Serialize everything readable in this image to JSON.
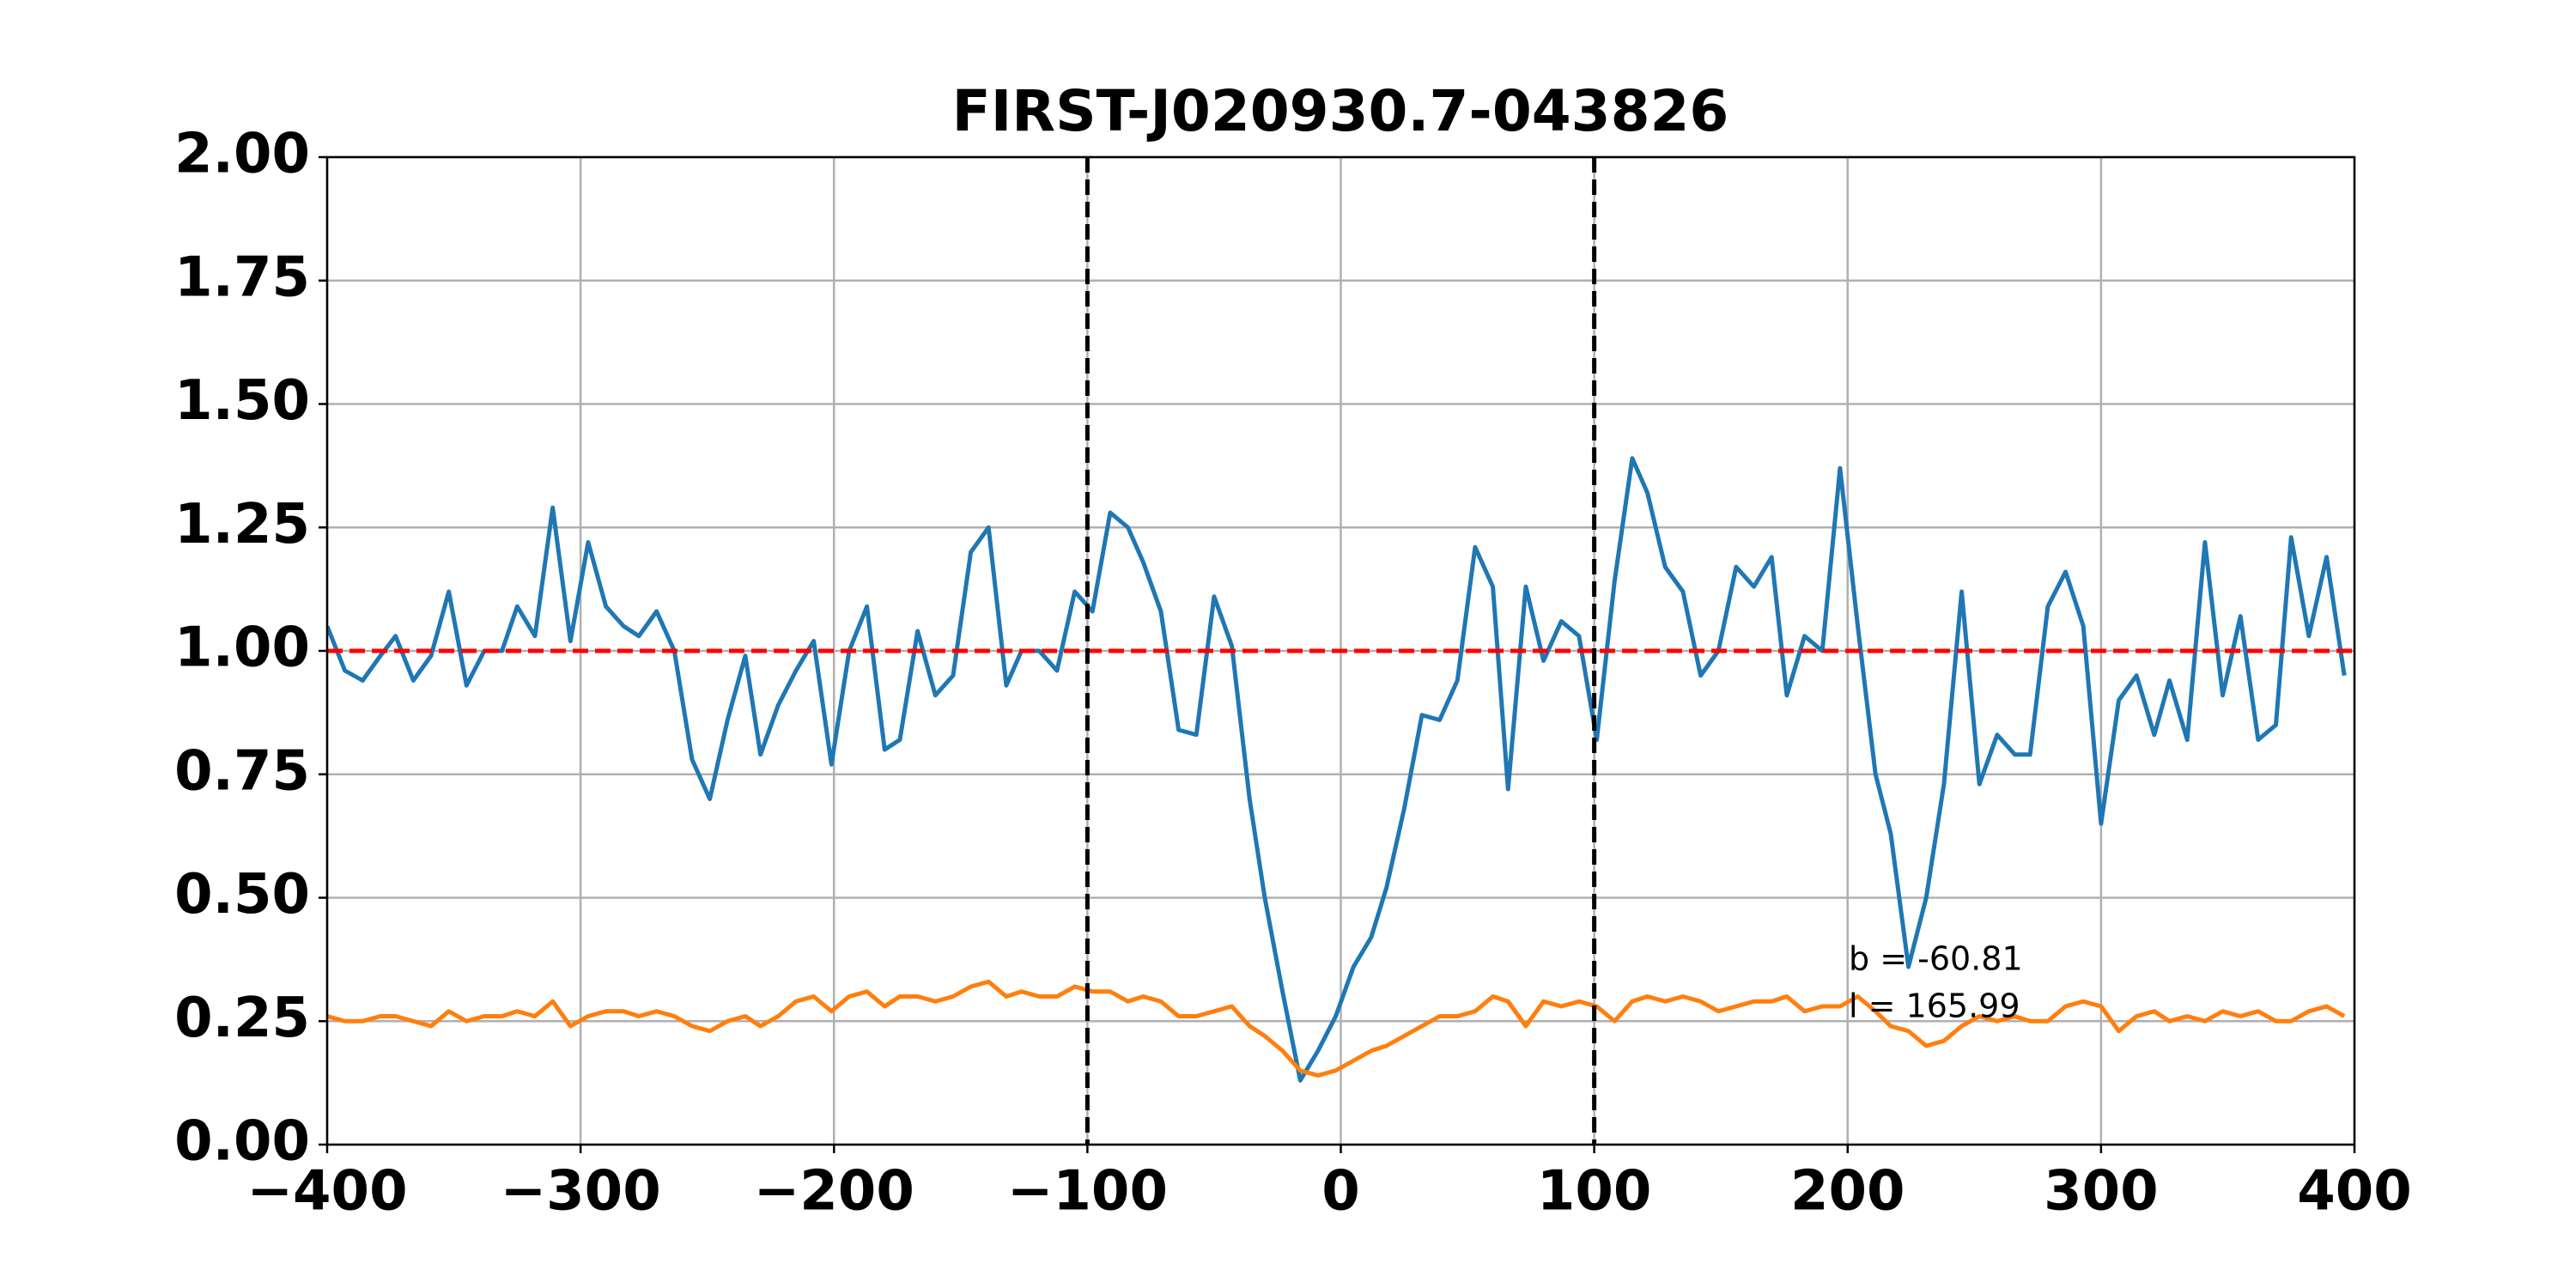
{
  "chart_data": {
    "type": "line",
    "title": "FIRST-J020930.7-043826",
    "x": [
      -400,
      -393,
      -386,
      -379,
      -373,
      -366,
      -359,
      -352,
      -345,
      -338,
      -331,
      -325,
      -318,
      -311,
      -304,
      -297,
      -290,
      -283,
      -277,
      -270,
      -263,
      -256,
      -249,
      -242,
      -235,
      -229,
      -222,
      -215,
      -208,
      -201,
      -194,
      -187,
      -180,
      -174,
      -167,
      -160,
      -153,
      -146,
      -139,
      -132,
      -126,
      -119,
      -112,
      -105,
      -98,
      -91,
      -84,
      -78,
      -71,
      -64,
      -57,
      -50,
      -43,
      -36,
      -30,
      -23,
      -16,
      -9,
      -2,
      5,
      12,
      18,
      25,
      32,
      39,
      46,
      53,
      60,
      66,
      73,
      80,
      87,
      94,
      101,
      108,
      115,
      121,
      128,
      135,
      142,
      149,
      156,
      163,
      170,
      176,
      183,
      190,
      197,
      204,
      211,
      217,
      224,
      231,
      238,
      245,
      252,
      259,
      266,
      272,
      279,
      286,
      293,
      300,
      307,
      314,
      321,
      327,
      334,
      341,
      348,
      355,
      362,
      369,
      375,
      382,
      389,
      396
    ],
    "series": [
      {
        "color": "#1f77b4",
        "values": [
          1.05,
          0.96,
          0.94,
          0.99,
          1.03,
          0.94,
          0.99,
          1.12,
          0.93,
          1.0,
          1.0,
          1.09,
          1.03,
          1.29,
          1.02,
          1.22,
          1.09,
          1.05,
          1.03,
          1.08,
          1.0,
          0.78,
          0.7,
          0.86,
          0.99,
          0.79,
          0.89,
          0.96,
          1.02,
          0.77,
          1.0,
          1.09,
          0.8,
          0.82,
          1.04,
          0.91,
          0.95,
          1.2,
          1.25,
          0.93,
          1.0,
          1.0,
          0.96,
          1.12,
          1.08,
          1.28,
          1.25,
          1.18,
          1.08,
          0.84,
          0.83,
          1.11,
          1.01,
          0.7,
          0.5,
          0.31,
          0.13,
          0.19,
          0.26,
          0.36,
          0.42,
          0.52,
          0.68,
          0.87,
          0.86,
          0.94,
          1.21,
          1.13,
          0.72,
          1.13,
          0.98,
          1.06,
          1.03,
          0.82,
          1.14,
          1.39,
          1.32,
          1.17,
          1.12,
          0.95,
          1.0,
          1.17,
          1.13,
          1.19,
          0.91,
          1.03,
          1.0,
          1.37,
          1.05,
          0.75,
          0.63,
          0.36,
          0.5,
          0.73,
          1.12,
          0.73,
          0.83,
          0.79,
          0.79,
          1.09,
          1.16,
          1.05,
          0.65,
          0.9,
          0.95,
          0.83,
          0.94,
          0.82,
          1.22,
          0.91,
          1.07,
          0.82,
          0.85,
          1.23,
          1.03,
          1.19,
          0.95
        ]
      },
      {
        "color": "#ff7f0e",
        "values": [
          0.26,
          0.25,
          0.25,
          0.26,
          0.26,
          0.25,
          0.24,
          0.27,
          0.25,
          0.26,
          0.26,
          0.27,
          0.26,
          0.29,
          0.24,
          0.26,
          0.27,
          0.27,
          0.26,
          0.27,
          0.26,
          0.24,
          0.23,
          0.25,
          0.26,
          0.24,
          0.26,
          0.29,
          0.3,
          0.27,
          0.3,
          0.31,
          0.28,
          0.3,
          0.3,
          0.29,
          0.3,
          0.32,
          0.33,
          0.3,
          0.31,
          0.3,
          0.3,
          0.32,
          0.31,
          0.31,
          0.29,
          0.3,
          0.29,
          0.26,
          0.26,
          0.27,
          0.28,
          0.24,
          0.22,
          0.19,
          0.15,
          0.14,
          0.15,
          0.17,
          0.19,
          0.2,
          0.22,
          0.24,
          0.26,
          0.26,
          0.27,
          0.3,
          0.29,
          0.24,
          0.29,
          0.28,
          0.29,
          0.28,
          0.25,
          0.29,
          0.3,
          0.29,
          0.3,
          0.29,
          0.27,
          0.28,
          0.29,
          0.29,
          0.3,
          0.27,
          0.28,
          0.28,
          0.3,
          0.27,
          0.24,
          0.23,
          0.2,
          0.21,
          0.24,
          0.26,
          0.25,
          0.26,
          0.25,
          0.25,
          0.28,
          0.29,
          0.28,
          0.23,
          0.26,
          0.27,
          0.25,
          0.26,
          0.25,
          0.27,
          0.26,
          0.27,
          0.25,
          0.25,
          0.27,
          0.28,
          0.26
        ]
      }
    ],
    "hlines": [
      {
        "value": 1,
        "color": "#ff0000"
      }
    ],
    "vlines": [
      {
        "value": -100,
        "color": "#000000"
      },
      {
        "value": 100,
        "color": "#000000"
      }
    ],
    "annotations": [
      "b = -60.81",
      "l = 165.99"
    ],
    "xlim": [
      -400,
      400
    ],
    "xticks": [
      {
        "value": -400,
        "label": "−400"
      },
      {
        "value": -300,
        "label": "−300"
      },
      {
        "value": -200,
        "label": "−200"
      },
      {
        "value": -100,
        "label": "−100"
      },
      0,
      100,
      200,
      300,
      400
    ],
    "ylim": [
      0,
      2
    ],
    "yticks": [
      {
        "value": 0,
        "label": "0.00"
      },
      {
        "value": 0.25,
        "label": "0.25"
      },
      {
        "value": 0.5,
        "label": "0.50"
      },
      {
        "value": 0.75,
        "label": "0.75"
      },
      {
        "value": 1,
        "label": "1.00"
      },
      {
        "value": 1.25,
        "label": "1.25"
      },
      {
        "value": 1.5,
        "label": "1.50"
      },
      {
        "value": 1.75,
        "label": "1.75"
      },
      {
        "value": 2,
        "label": "2.00"
      }
    ],
    "grid": true
  }
}
